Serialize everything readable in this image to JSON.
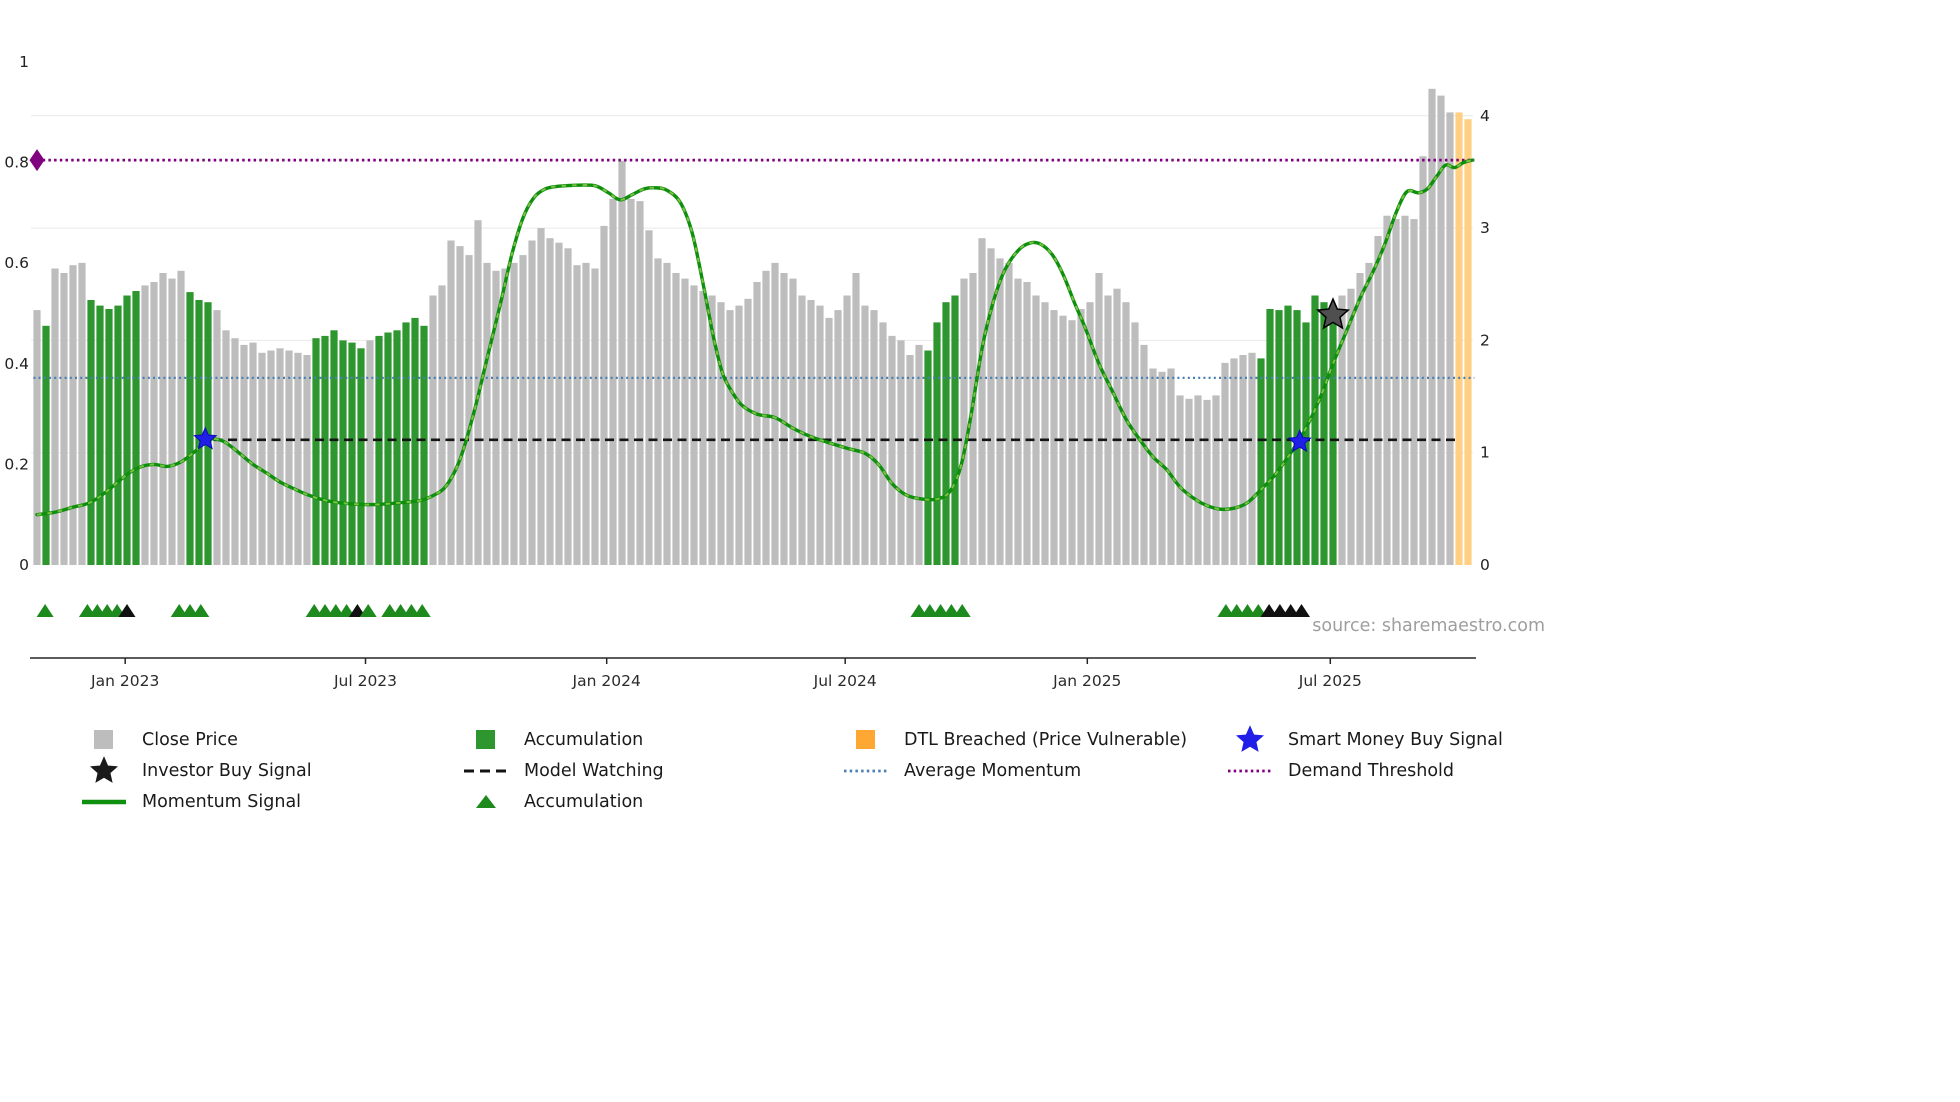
{
  "source_credit": "source: sharemaestro.com",
  "legend": {
    "position": "bottom",
    "rows": [
      [
        {
          "label": "Close Price",
          "swatch": "square",
          "color": "#bdbdbd"
        },
        {
          "label": "Accumulation",
          "swatch": "square",
          "color": "#2e962e"
        },
        {
          "label": "DTL Breached (Price Vulnerable)",
          "swatch": "square",
          "color": "#ffa733"
        },
        {
          "label": "Smart Money Buy Signal",
          "swatch": "star",
          "color": "#1f1fe8"
        }
      ],
      [
        {
          "label": "Investor Buy Signal",
          "swatch": "star",
          "color": "#1a1a1a"
        },
        {
          "label": "Model Watching",
          "swatch": "dashed-line",
          "color": "#141414"
        },
        {
          "label": "Average Momentum",
          "swatch": "dotted-line",
          "color": "#4a7fb5"
        },
        {
          "label": "Demand Threshold",
          "swatch": "dotted-line",
          "color": "#800080"
        }
      ],
      [
        {
          "label": "Momentum Signal",
          "swatch": "solid-line",
          "color": "#0e8f0e"
        },
        {
          "label": "Accumulation",
          "swatch": "triangle",
          "color": "#1e8a1e"
        }
      ]
    ]
  },
  "chart_data": {
    "type": "bar",
    "title": "",
    "xlabel": "",
    "ylabel_left": "",
    "ylabel_right": "",
    "grid": "horizontal-faint",
    "legend_position": "bottom",
    "colors": {
      "close": "#bdbdbd",
      "accumulation": "#2e962e",
      "dtl_breached": "#ffd084",
      "momentum": "#0e8f0e",
      "momentum_overlay": "#7cc143",
      "demand_threshold": "#800080",
      "average_momentum": "#4a7fb5",
      "model_watching": "#141414",
      "smart_money_star": "#1f1fe8",
      "investor_star": "#4f4f4f",
      "triangle_green": "#1e8a1e",
      "triangle_black": "#111111"
    },
    "left_axis": {
      "ticks": [
        0,
        0.2,
        0.4,
        0.6,
        0.8,
        1
      ],
      "labels": [
        "0",
        "0.2",
        "0.4",
        "0.6",
        "0.8",
        "1"
      ],
      "range": [
        0,
        1
      ]
    },
    "right_axis": {
      "ticks": [
        0,
        1,
        2,
        3,
        4
      ],
      "labels": [
        "0",
        "1",
        "2",
        "3",
        "4"
      ],
      "range": [
        0,
        4.4
      ]
    },
    "x_ticks": [
      {
        "label": "Jan 2023",
        "i": 9.8
      },
      {
        "label": "Jul 2023",
        "i": 36.5
      },
      {
        "label": "Jan 2024",
        "i": 63.3
      },
      {
        "label": "Jul 2024",
        "i": 89.8
      },
      {
        "label": "Jan 2025",
        "i": 116.7
      },
      {
        "label": "Jul 2025",
        "i": 143.7
      }
    ],
    "bars": {
      "name": "Close Price (weekly, right axis)",
      "states_key": {
        "g": "close",
        "a": "accumulation",
        "d": "dtl_breached"
      },
      "states": "gaggggaaaaaagggggaaagggggggggggaaaaaagaaaaaagggggggggggggggggggggggggggggggggggggggggggggggggggggggaaaagggggggggggggggggggggggggggggggggaaaaaaaaagggggggggggggdddddd",
      "values": [
        2.27,
        2.13,
        2.64,
        2.6,
        2.67,
        2.69,
        2.36,
        2.31,
        2.28,
        2.31,
        2.4,
        2.44,
        2.49,
        2.52,
        2.6,
        2.55,
        2.62,
        2.43,
        2.36,
        2.34,
        2.27,
        2.09,
        2.02,
        1.96,
        1.98,
        1.89,
        1.91,
        1.93,
        1.91,
        1.89,
        1.87,
        2.02,
        2.04,
        2.09,
        2.0,
        1.98,
        1.93,
        2.0,
        2.04,
        2.07,
        2.09,
        2.16,
        2.2,
        2.13,
        2.4,
        2.49,
        2.89,
        2.84,
        2.76,
        3.07,
        2.69,
        2.62,
        2.64,
        2.69,
        2.76,
        2.89,
        3.0,
        2.91,
        2.87,
        2.82,
        2.67,
        2.69,
        2.64,
        3.02,
        3.26,
        3.6,
        3.26,
        3.24,
        2.98,
        2.73,
        2.69,
        2.6,
        2.55,
        2.49,
        2.44,
        2.4,
        2.34,
        2.27,
        2.31,
        2.37,
        2.52,
        2.62,
        2.69,
        2.6,
        2.55,
        2.4,
        2.36,
        2.31,
        2.2,
        2.27,
        2.4,
        2.6,
        2.31,
        2.27,
        2.16,
        2.04,
        2.0,
        1.87,
        1.96,
        1.91,
        2.16,
        2.34,
        2.4,
        2.55,
        2.6,
        2.91,
        2.82,
        2.73,
        2.69,
        2.55,
        2.52,
        2.4,
        2.34,
        2.27,
        2.22,
        2.18,
        2.28,
        2.34,
        2.6,
        2.4,
        2.46,
        2.34,
        2.16,
        1.96,
        1.75,
        1.72,
        1.75,
        1.51,
        1.48,
        1.51,
        1.47,
        1.51,
        1.8,
        1.84,
        1.87,
        1.89,
        1.84,
        2.28,
        2.27,
        2.31,
        2.27,
        2.16,
        2.4,
        2.34,
        2.22,
        2.4,
        2.46,
        2.6,
        2.69,
        2.93,
        3.11,
        3.08,
        3.11,
        3.08,
        3.64,
        4.24,
        4.18,
        4.03,
        4.03,
        3.97
      ]
    },
    "momentum": {
      "name": "Momentum Signal (left axis)",
      "points": [
        [
          0,
          0.1
        ],
        [
          2,
          0.105
        ],
        [
          4,
          0.115
        ],
        [
          6,
          0.125
        ],
        [
          8,
          0.15
        ],
        [
          10,
          0.18
        ],
        [
          11.5,
          0.195
        ],
        [
          13,
          0.2
        ],
        [
          14.5,
          0.196
        ],
        [
          16,
          0.205
        ],
        [
          17.5,
          0.225
        ],
        [
          19,
          0.248
        ],
        [
          20,
          0.25
        ],
        [
          21,
          0.243
        ],
        [
          22.5,
          0.222
        ],
        [
          24,
          0.2
        ],
        [
          25.5,
          0.183
        ],
        [
          27,
          0.165
        ],
        [
          28.5,
          0.152
        ],
        [
          30,
          0.14
        ],
        [
          31.5,
          0.131
        ],
        [
          33,
          0.125
        ],
        [
          34.5,
          0.122
        ],
        [
          36.5,
          0.12
        ],
        [
          38.5,
          0.121
        ],
        [
          40.5,
          0.124
        ],
        [
          42.5,
          0.128
        ],
        [
          44,
          0.138
        ],
        [
          45.5,
          0.158
        ],
        [
          47,
          0.21
        ],
        [
          48.5,
          0.3
        ],
        [
          50,
          0.41
        ],
        [
          51.5,
          0.52
        ],
        [
          52.8,
          0.62
        ],
        [
          54,
          0.69
        ],
        [
          55.2,
          0.73
        ],
        [
          56.5,
          0.748
        ],
        [
          58,
          0.753
        ],
        [
          60,
          0.755
        ],
        [
          62,
          0.754
        ],
        [
          63.5,
          0.74
        ],
        [
          64.8,
          0.726
        ],
        [
          66.2,
          0.737
        ],
        [
          67.5,
          0.748
        ],
        [
          68.7,
          0.75
        ],
        [
          70,
          0.745
        ],
        [
          71.5,
          0.72
        ],
        [
          72.8,
          0.66
        ],
        [
          74,
          0.56
        ],
        [
          75.2,
          0.45
        ],
        [
          76.2,
          0.38
        ],
        [
          77.2,
          0.345
        ],
        [
          78.3,
          0.318
        ],
        [
          80,
          0.3
        ],
        [
          82,
          0.293
        ],
        [
          84,
          0.272
        ],
        [
          86,
          0.255
        ],
        [
          88,
          0.243
        ],
        [
          90,
          0.232
        ],
        [
          92,
          0.222
        ],
        [
          93.5,
          0.2
        ],
        [
          95,
          0.162
        ],
        [
          96.5,
          0.14
        ],
        [
          98,
          0.132
        ],
        [
          100,
          0.131
        ],
        [
          101.5,
          0.148
        ],
        [
          102.7,
          0.2
        ],
        [
          103.8,
          0.3
        ],
        [
          105,
          0.43
        ],
        [
          106.2,
          0.52
        ],
        [
          107.5,
          0.585
        ],
        [
          109,
          0.625
        ],
        [
          110.3,
          0.64
        ],
        [
          111.5,
          0.638
        ],
        [
          112.8,
          0.617
        ],
        [
          114,
          0.578
        ],
        [
          115.3,
          0.52
        ],
        [
          116.5,
          0.47
        ],
        [
          118,
          0.4
        ],
        [
          119.5,
          0.345
        ],
        [
          121,
          0.29
        ],
        [
          122.5,
          0.25
        ],
        [
          124,
          0.215
        ],
        [
          125.5,
          0.19
        ],
        [
          127,
          0.155
        ],
        [
          128.5,
          0.133
        ],
        [
          130,
          0.118
        ],
        [
          131.5,
          0.111
        ],
        [
          133,
          0.113
        ],
        [
          134.5,
          0.124
        ],
        [
          136,
          0.15
        ],
        [
          137.5,
          0.178
        ],
        [
          139,
          0.215
        ],
        [
          140.3,
          0.25
        ],
        [
          141.5,
          0.29
        ],
        [
          142.7,
          0.338
        ],
        [
          144,
          0.4
        ],
        [
          145.5,
          0.465
        ],
        [
          147,
          0.53
        ],
        [
          148.5,
          0.585
        ],
        [
          149.8,
          0.64
        ],
        [
          151,
          0.7
        ],
        [
          152.2,
          0.742
        ],
        [
          153.5,
          0.74
        ],
        [
          154.5,
          0.748
        ],
        [
          155.5,
          0.772
        ],
        [
          156.5,
          0.795
        ],
        [
          157.5,
          0.79
        ],
        [
          158.5,
          0.8
        ],
        [
          159.5,
          0.805
        ]
      ]
    },
    "ref_lines": [
      {
        "name": "Demand Threshold",
        "value": 0.805,
        "color": "#800080",
        "dash": "2.5 3.2",
        "width": 2.8,
        "from": 0,
        "to": 159.7
      },
      {
        "name": "Average Momentum",
        "value": 0.372,
        "color": "#4a7fb5",
        "dash": "2 3.2",
        "width": 2.2,
        "from": -0.4,
        "to": 159.7
      },
      {
        "name": "Model Watching",
        "value": 0.249,
        "color": "#141414",
        "dash": "9 5.5",
        "width": 2.6,
        "from": 18,
        "to": 158
      }
    ],
    "markers": {
      "smart_money_buy": [
        {
          "i": 18.7,
          "v": 0.25
        },
        {
          "i": 140.3,
          "v": 0.245
        }
      ],
      "investor_buy": [
        {
          "i": 144,
          "v": 0.497
        }
      ],
      "demand_threshold_origin": {
        "i": 0,
        "v": 0.805
      },
      "accumulation_triangles": [
        {
          "i": 0.9,
          "c": "green"
        },
        {
          "i": 5.6,
          "c": "green"
        },
        {
          "i": 6.7,
          "c": "green"
        },
        {
          "i": 7.8,
          "c": "green"
        },
        {
          "i": 8.9,
          "c": "green"
        },
        {
          "i": 10.0,
          "c": "black"
        },
        {
          "i": 15.8,
          "c": "green"
        },
        {
          "i": 17.0,
          "c": "green"
        },
        {
          "i": 18.2,
          "c": "green"
        },
        {
          "i": 30.8,
          "c": "green"
        },
        {
          "i": 32.0,
          "c": "green"
        },
        {
          "i": 33.2,
          "c": "green"
        },
        {
          "i": 34.4,
          "c": "green"
        },
        {
          "i": 35.6,
          "c": "black"
        },
        {
          "i": 36.8,
          "c": "green"
        },
        {
          "i": 39.2,
          "c": "green"
        },
        {
          "i": 40.4,
          "c": "green"
        },
        {
          "i": 41.6,
          "c": "green"
        },
        {
          "i": 42.8,
          "c": "green"
        },
        {
          "i": 98.0,
          "c": "green"
        },
        {
          "i": 99.2,
          "c": "green"
        },
        {
          "i": 100.4,
          "c": "green"
        },
        {
          "i": 101.6,
          "c": "green"
        },
        {
          "i": 102.8,
          "c": "green"
        },
        {
          "i": 132.1,
          "c": "green"
        },
        {
          "i": 133.3,
          "c": "green"
        },
        {
          "i": 134.5,
          "c": "green"
        },
        {
          "i": 135.7,
          "c": "green"
        },
        {
          "i": 136.9,
          "c": "black"
        },
        {
          "i": 138.1,
          "c": "black"
        },
        {
          "i": 139.3,
          "c": "black"
        },
        {
          "i": 140.5,
          "c": "black"
        }
      ]
    }
  }
}
